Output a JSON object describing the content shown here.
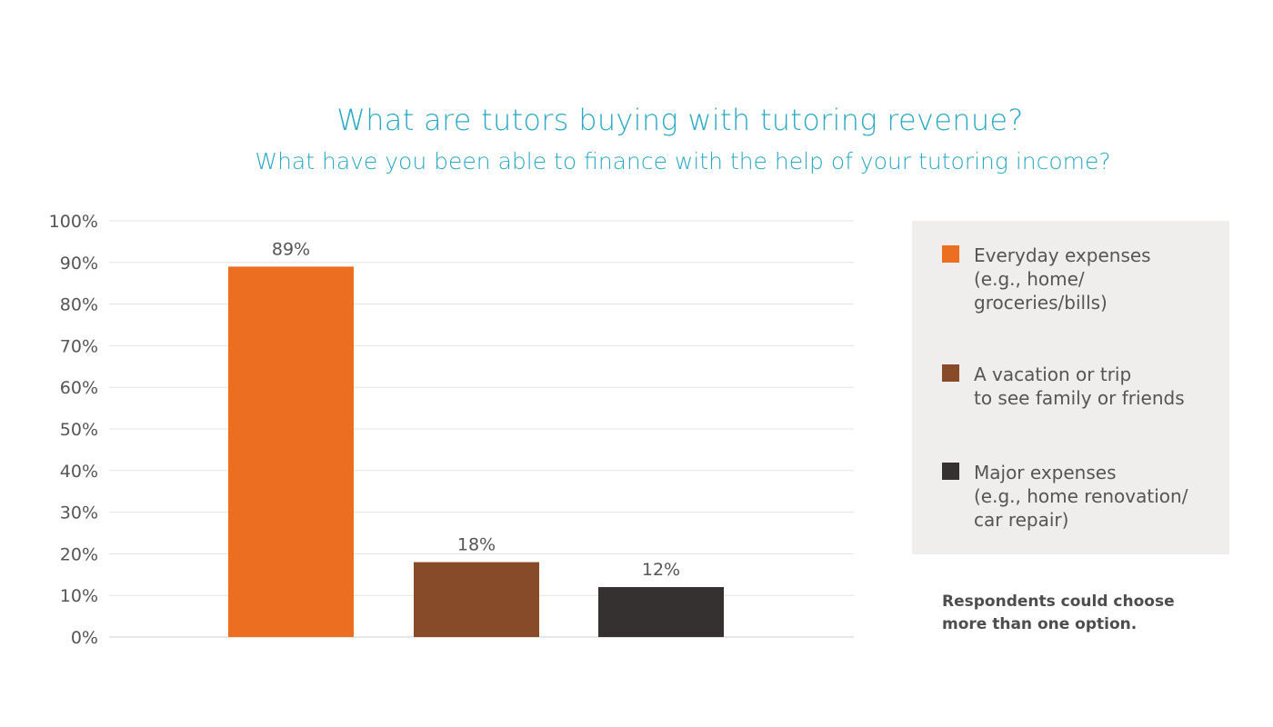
{
  "chart_data": {
    "type": "bar",
    "title": "What are tutors buying with tutoring revenue?",
    "subtitle": "What have you been able to finance with the help of your tutoring income?",
    "categories": [
      "Everyday expenses\n(e.g., home/\ngroceries/bills)",
      "A vacation or trip\nto see family or friends",
      "Major expenses\n(e.g., home renovation/\ncar repair)"
    ],
    "values": [
      89,
      18,
      12
    ],
    "data_labels": [
      "89%",
      "18%",
      "12%"
    ],
    "colors": [
      "#eb6e21",
      "#874b29",
      "#343130"
    ],
    "ylim": [
      0,
      100
    ],
    "yticks": [
      "0%",
      "10%",
      "20%",
      "30%",
      "40%",
      "50%",
      "60%",
      "70%",
      "80%",
      "90%",
      "100%"
    ],
    "grid": true,
    "legend_position": "right",
    "xlabel": "",
    "ylabel": ""
  },
  "note": "Respondents could choose\nmore than one option."
}
